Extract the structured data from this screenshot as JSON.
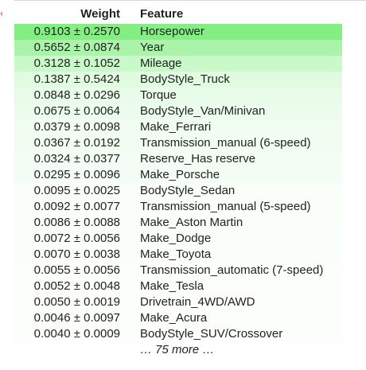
{
  "table": {
    "headers": {
      "weight": "Weight",
      "feature": "Feature"
    },
    "rows": [
      {
        "weight": "0.9103 ± 0.2570",
        "feature": "Horsepower",
        "color": "#83ef83"
      },
      {
        "weight": "0.5652 ± 0.0874",
        "feature": "Year",
        "color": "#aaf4aa"
      },
      {
        "weight": "0.3128 ± 0.1052",
        "feature": "Mileage",
        "color": "#c9f8c9"
      },
      {
        "weight": "0.1387 ± 0.5424",
        "feature": "BodyStyle_Truck",
        "color": "#e1fbe1"
      },
      {
        "weight": "0.0848 ± 0.0296",
        "feature": "Torque",
        "color": "#e9fce9"
      },
      {
        "weight": "0.0675 ± 0.0064",
        "feature": "BodyStyle_Van/Minivan",
        "color": "#ecfcec"
      },
      {
        "weight": "0.0379 ± 0.0098",
        "feature": "Make_Ferrari",
        "color": "#f1fdf1"
      },
      {
        "weight": "0.0367 ± 0.0192",
        "feature": "Transmission_manual (6-speed)",
        "color": "#f2fdf2"
      },
      {
        "weight": "0.0324 ± 0.0377",
        "feature": "Reserve_Has reserve",
        "color": "#f3fdf3"
      },
      {
        "weight": "0.0295 ± 0.0096",
        "feature": "Make_Porsche",
        "color": "#f3fdf3"
      },
      {
        "weight": "0.0095 ± 0.0025",
        "feature": "BodyStyle_Sedan",
        "color": "#f9fef9"
      },
      {
        "weight": "0.0092 ± 0.0077",
        "feature": "Transmission_manual (5-speed)",
        "color": "#f9fef9"
      },
      {
        "weight": "0.0086 ± 0.0088",
        "feature": "Make_Aston Martin",
        "color": "#f9fef9"
      },
      {
        "weight": "0.0072 ± 0.0056",
        "feature": "Make_Dodge",
        "color": "#fafefa"
      },
      {
        "weight": "0.0070 ± 0.0038",
        "feature": "Make_Toyota",
        "color": "#fafefa"
      },
      {
        "weight": "0.0055 ± 0.0056",
        "feature": "Transmission_automatic (7-speed)",
        "color": "#fbfefb"
      },
      {
        "weight": "0.0052 ± 0.0048",
        "feature": "Make_Tesla",
        "color": "#fbfefb"
      },
      {
        "weight": "0.0050 ± 0.0019",
        "feature": "Drivetrain_4WD/AWD",
        "color": "#fbfefb"
      },
      {
        "weight": "0.0046 ± 0.0097",
        "feature": "Make_Acura",
        "color": "#fbfefb"
      },
      {
        "weight": "0.0040 ± 0.0009",
        "feature": "BodyStyle_SUV/Crossover",
        "color": "#fcfefc"
      }
    ],
    "more_text": "… 75 more …"
  }
}
